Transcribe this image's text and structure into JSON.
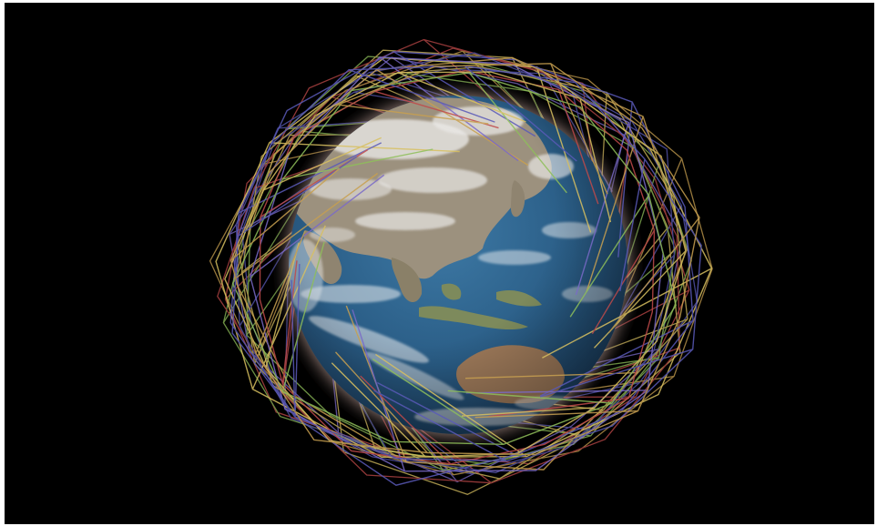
{
  "scene": {
    "subject": "earth-with-satellite-mesh",
    "background_color": "#000000",
    "frame_color": "#ffffff",
    "ocean_color": "#2d5f86",
    "land_color": "#9a8f7c",
    "cloud_color": "#f2f2f2",
    "halo_color": "#e8d8d0",
    "mesh_colors": [
      "#c04a4a",
      "#8fbf5a",
      "#d8c060",
      "#5a5ab8",
      "#c8a050",
      "#7a6ac8"
    ]
  }
}
